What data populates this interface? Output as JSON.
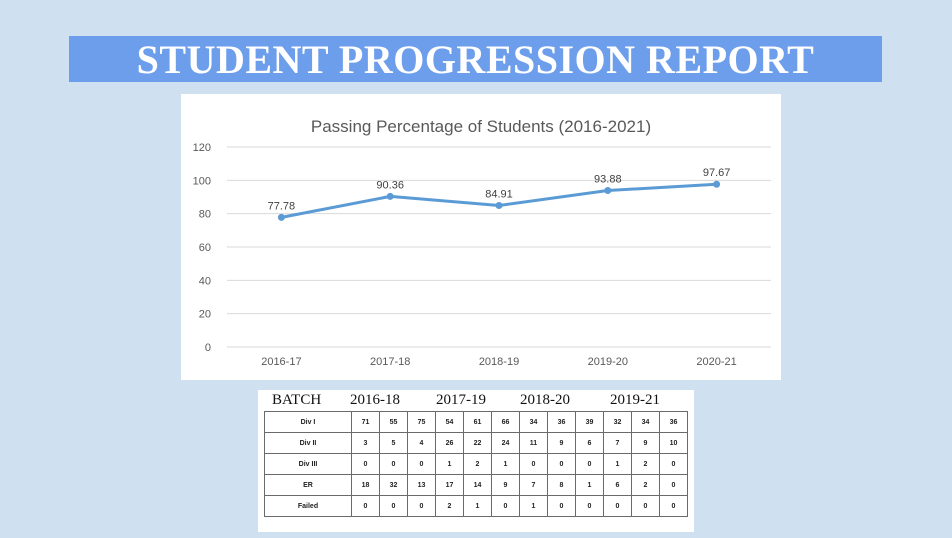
{
  "page": {
    "title": "STUDENT PROGRESSION REPORT"
  },
  "colors": {
    "banner": "#6d9eeb",
    "background": "#cfe0f1",
    "line": "#5b9bd5"
  },
  "chart_data": {
    "type": "line",
    "title": "Passing Percentage of Students (2016-2021)",
    "categories": [
      "2016-17",
      "2017-18",
      "2018-19",
      "2019-20",
      "2020-21"
    ],
    "series": [
      {
        "values": [
          77.78,
          90.36,
          84.91,
          93.88,
          97.67
        ],
        "labels": [
          "77.78",
          "90.36",
          "84.91",
          "93.88",
          "97.67"
        ]
      }
    ],
    "ylim": [
      0,
      120
    ],
    "yticks": [
      "0",
      "20",
      "40",
      "60",
      "80",
      "100",
      "120"
    ],
    "grid": true,
    "xlabel": "",
    "ylabel": ""
  },
  "table": {
    "header_label": "BATCH",
    "batches": [
      "2016-18",
      "2017-19",
      "2018-20",
      "2019-21"
    ],
    "rows": [
      {
        "label": "Div I",
        "cells": [
          "71",
          "55",
          "75",
          "54",
          "61",
          "66",
          "34",
          "36",
          "39",
          "32",
          "34",
          "36"
        ]
      },
      {
        "label": "Div II",
        "cells": [
          "3",
          "5",
          "4",
          "26",
          "22",
          "24",
          "11",
          "9",
          "6",
          "7",
          "9",
          "10"
        ]
      },
      {
        "label": "Div III",
        "cells": [
          "0",
          "0",
          "0",
          "1",
          "2",
          "1",
          "0",
          "0",
          "0",
          "1",
          "2",
          "0"
        ]
      },
      {
        "label": "ER",
        "cells": [
          "18",
          "32",
          "13",
          "17",
          "14",
          "9",
          "7",
          "8",
          "1",
          "6",
          "2",
          "0"
        ]
      },
      {
        "label": "Failed",
        "cells": [
          "0",
          "0",
          "0",
          "2",
          "1",
          "0",
          "1",
          "0",
          "0",
          "0",
          "0",
          "0"
        ]
      }
    ]
  }
}
